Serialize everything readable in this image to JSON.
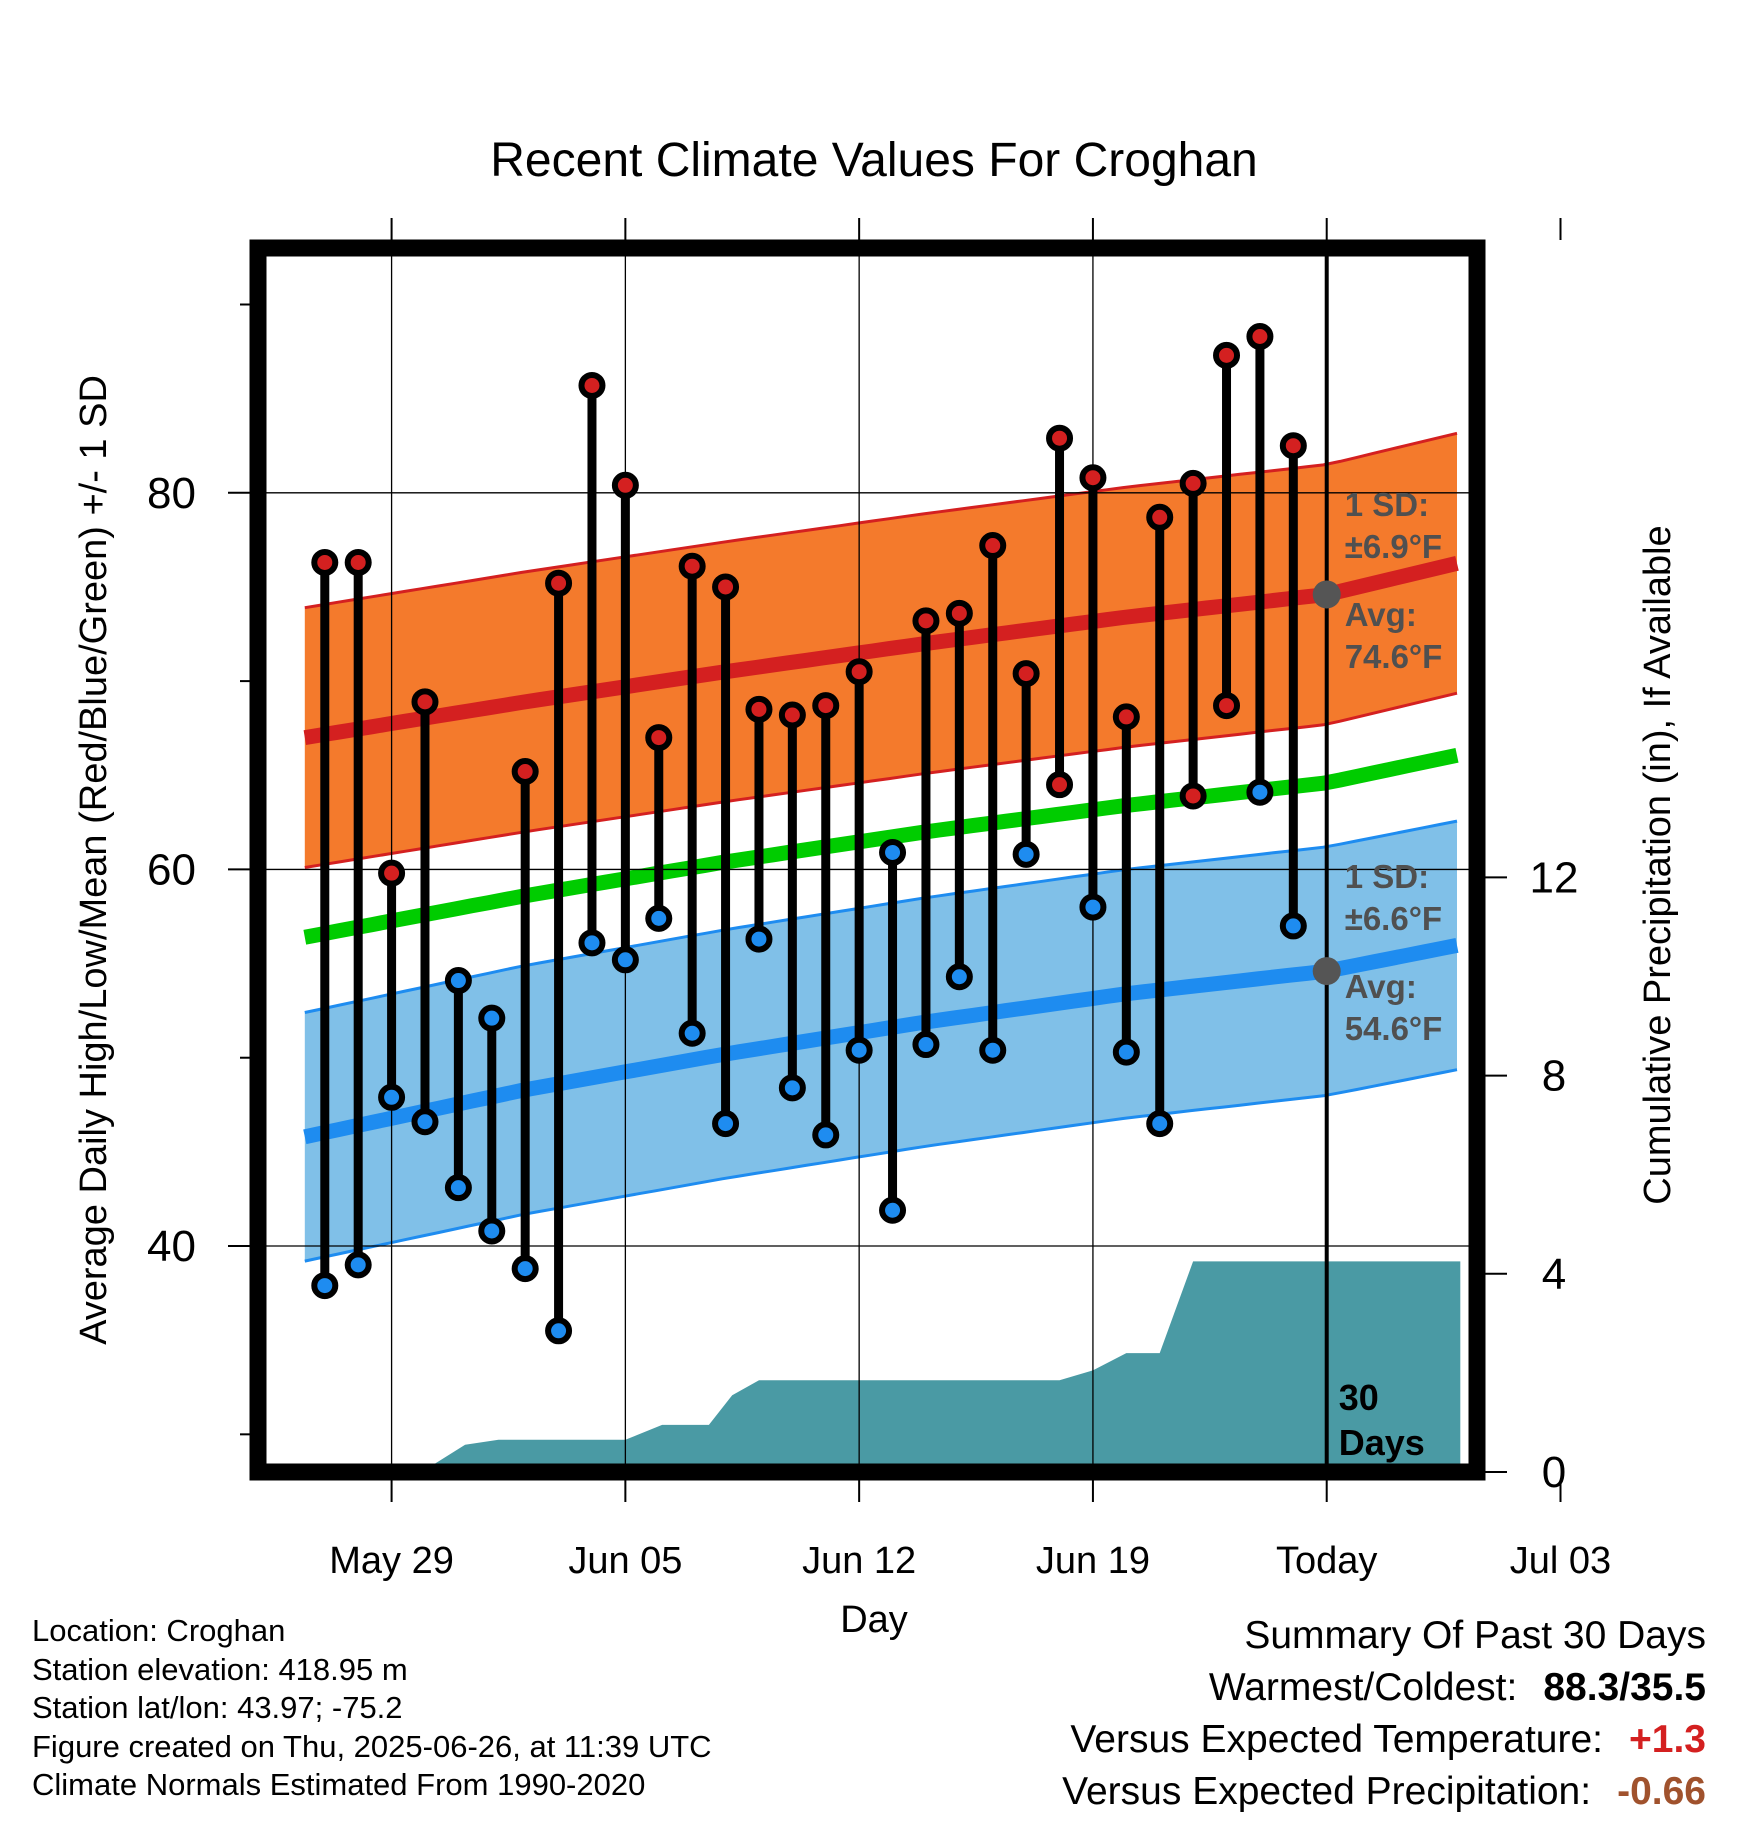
{
  "chart_data": {
    "type": "line",
    "title": "Recent Climate Values For Croghan",
    "xlabel": "Day",
    "ylabel": "Average Daily High/Low/Mean (Red/Blue/Green) +/- 1 SD",
    "y2label": "Cumulative Precipitation (in), If Available",
    "ylim": [
      28,
      93
    ],
    "y2lim": [
      0,
      24.7
    ],
    "yticks": [
      "40",
      "60",
      "80"
    ],
    "y2ticks": [
      "0",
      "4",
      "8",
      "12"
    ],
    "xlim": [
      -4,
      32.5
    ],
    "xticks": [
      {
        "day": 0,
        "label": "May 29"
      },
      {
        "day": 7,
        "label": "Jun 05"
      },
      {
        "day": 14,
        "label": "Jun 12"
      },
      {
        "day": 21,
        "label": "Jun 19"
      },
      {
        "day": 28,
        "label": "Today"
      },
      {
        "day": 35,
        "label": "Jul 03"
      }
    ],
    "today_day": 28,
    "today_label": "30 Days",
    "grid": true,
    "normal_high": {
      "days": [
        -2.6,
        4,
        10,
        16,
        22,
        28,
        32
      ],
      "values": [
        67.0,
        68.9,
        70.5,
        72.0,
        73.4,
        74.6,
        76.3
      ]
    },
    "normal_low": {
      "days": [
        -2.6,
        4,
        10,
        16,
        22,
        28,
        32
      ],
      "values": [
        45.8,
        48.3,
        50.2,
        51.9,
        53.4,
        54.6,
        56.0
      ]
    },
    "normal_mean": {
      "days": [
        -2.6,
        4,
        10,
        16,
        22,
        28,
        32
      ],
      "values": [
        56.4,
        58.6,
        60.4,
        62.0,
        63.4,
        64.6,
        66.1
      ]
    },
    "high_sd": 6.9,
    "low_sd": 6.6,
    "high_annotation": {
      "sd_label": "1 SD:",
      "sd_value": "±6.9°F",
      "avg_label": "Avg:",
      "avg_value": "74.6°F",
      "avg": 74.6
    },
    "low_annotation": {
      "sd_label": "1 SD:",
      "sd_value": "±6.6°F",
      "avg_label": "Avg:",
      "avg_value": "54.6°F",
      "avg": 54.6
    },
    "daily": [
      {
        "day": -2,
        "high": 76.3,
        "low": 37.9
      },
      {
        "day": -1,
        "high": 76.3,
        "low": 39.0
      },
      {
        "day": 0,
        "high": 59.8,
        "low": 47.9
      },
      {
        "day": 1,
        "high": 68.9,
        "low": 46.6
      },
      {
        "day": 2,
        "high": 54.1,
        "low": 43.1
      },
      {
        "day": 3,
        "high": 52.1,
        "low": 40.8
      },
      {
        "day": 4,
        "high": 65.2,
        "low": 38.8
      },
      {
        "day": 5,
        "high": 75.2,
        "low": 35.5
      },
      {
        "day": 6,
        "high": 85.7,
        "low": 56.1
      },
      {
        "day": 7,
        "high": 80.4,
        "low": 55.2
      },
      {
        "day": 8,
        "high": 67.0,
        "low": 57.4
      },
      {
        "day": 9,
        "high": 76.1,
        "low": 51.3
      },
      {
        "day": 10,
        "high": 75.0,
        "low": 46.5
      },
      {
        "day": 11,
        "high": 68.5,
        "low": 56.3
      },
      {
        "day": 12,
        "high": 68.2,
        "low": 48.4
      },
      {
        "day": 13,
        "high": 68.7,
        "low": 45.9
      },
      {
        "day": 14,
        "high": 70.5,
        "low": 50.4
      },
      {
        "day": 15,
        "high": 60.9,
        "low": 41.9
      },
      {
        "day": 16,
        "high": 73.2,
        "low": 50.7
      },
      {
        "day": 17,
        "high": 73.6,
        "low": 54.3
      },
      {
        "day": 18,
        "high": 77.2,
        "low": 50.4
      },
      {
        "day": 19,
        "high": 70.4,
        "low": 60.8
      },
      {
        "day": 20,
        "high": 82.9,
        "low": 64.5
      },
      {
        "day": 21,
        "high": 80.8,
        "low": 58.0
      },
      {
        "day": 22,
        "high": 68.1,
        "low": 50.3
      },
      {
        "day": 23,
        "high": 78.7,
        "low": 46.5
      },
      {
        "day": 24,
        "high": 80.5,
        "low": 63.9
      },
      {
        "day": 25,
        "high": 87.3,
        "low": 68.7
      },
      {
        "day": 26,
        "high": 88.3,
        "low": 64.1
      },
      {
        "day": 27,
        "high": 82.5,
        "low": 57.0
      }
    ],
    "precip_cumulative": {
      "days": [
        -3.0,
        0.9,
        2.2,
        3.2,
        7.0,
        8.1,
        9.5,
        10.2,
        11.0,
        20.0,
        21.0,
        22.0,
        23.0,
        24.0,
        32.0
      ],
      "values": [
        0,
        0,
        0.55,
        0.65,
        0.65,
        0.95,
        0.95,
        1.55,
        1.85,
        1.85,
        2.05,
        2.4,
        2.4,
        4.25,
        4.25
      ]
    },
    "colors": {
      "high_band": "#f47a2c",
      "low_band": "#80c0e8",
      "normal_high": "#d42020",
      "normal_low": "#1e8cf0",
      "normal_mean": "#00cc00",
      "precip": "#4a9aa4",
      "high_dot": "#d42020",
      "low_dot": "#1e8cf0",
      "annotation": "#505050"
    }
  },
  "info": {
    "location": "Location: Croghan",
    "elevation": "Station elevation: 418.95 m",
    "latlon": "Station lat/lon: 43.97; -75.2",
    "created": "Figure created on Thu, 2025-06-26, at 11:39 UTC",
    "normals": "Climate Normals Estimated From 1990-2020"
  },
  "summary": {
    "heading": "Summary Of Past 30 Days",
    "warm_cold_label": "Warmest/Coldest:",
    "warm_cold_value": "88.3/35.5",
    "temp_label": "Versus Expected Temperature:",
    "temp_value": "+1.3",
    "temp_color": "#d42020",
    "precip_label": "Versus Expected Precipitation:",
    "precip_value": "-0.66",
    "precip_color": "#a0522d"
  }
}
